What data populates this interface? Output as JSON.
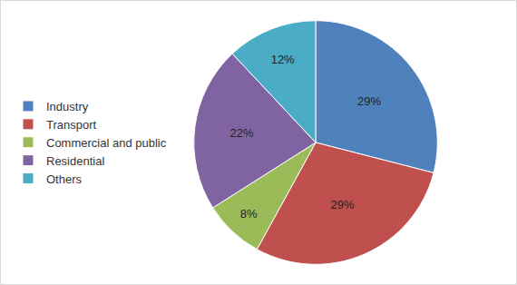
{
  "chart_data": {
    "type": "pie",
    "categories": [
      "Industry",
      "Transport",
      "Commercial and public",
      "Residential",
      "Others"
    ],
    "values": [
      29,
      29,
      8,
      22,
      12
    ],
    "value_labels": [
      "29%",
      "29%",
      "8%",
      "22%",
      "12%"
    ],
    "colors": [
      "#4f81bd",
      "#c0504d",
      "#9bbb59",
      "#8064a2",
      "#4bacc6"
    ],
    "data_labels": true,
    "legend": "left"
  }
}
